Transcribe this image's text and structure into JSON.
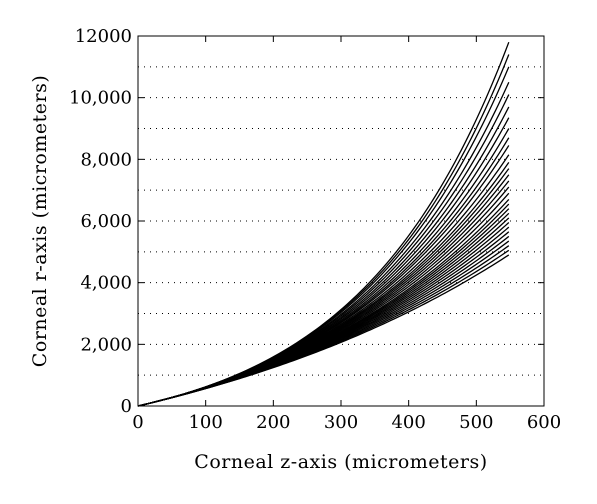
{
  "chart_data": {
    "type": "line",
    "title": "",
    "xlabel": "Corneal z-axis (micrometers)",
    "ylabel": "Corneal r-axis (micrometers)",
    "xlim": [
      0,
      600
    ],
    "ylim": [
      0,
      12000
    ],
    "x_ticks": [
      0,
      100,
      200,
      300,
      400,
      500,
      600
    ],
    "x_tick_labels": [
      "0",
      "100",
      "200",
      "300",
      "400",
      "500",
      "600"
    ],
    "y_ticks": [
      0,
      2000,
      4000,
      6000,
      8000,
      10000,
      12000
    ],
    "y_tick_labels": [
      "0",
      "2,000",
      "4,000",
      "6,000",
      "8,000",
      "10,000",
      "12000"
    ],
    "y_grid_step": 1000,
    "grid": "horizontal-dotted",
    "legend": "none",
    "series_x_end": 548,
    "series_y_end": [
      4900,
      5050,
      5200,
      5350,
      5500,
      5650,
      5800,
      5950,
      6100,
      6250,
      6400,
      6550,
      6700,
      6900,
      7100,
      7300,
      7500,
      7700,
      7900,
      8150,
      8450,
      8700,
      9000,
      9350,
      9700,
      10100,
      10500,
      11000,
      11400,
      11800
    ],
    "series_color": "#000000"
  }
}
